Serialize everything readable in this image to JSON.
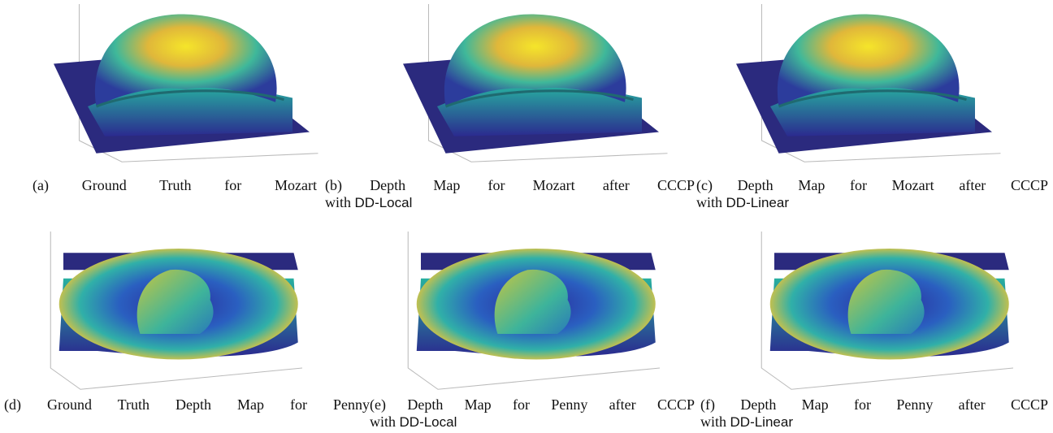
{
  "figures": [
    {
      "label": "(a)",
      "caption": "Ground Truth for Mozart"
    },
    {
      "label": "(b)",
      "caption": "Depth Map for Mozart after CCCP",
      "caption_line2": "with",
      "method": "DD-Local"
    },
    {
      "label": "(c)",
      "caption": "Depth Map for Mozart after CCCP",
      "caption_line2": "with",
      "method": "DD-Linear"
    },
    {
      "label": "(d)",
      "caption": "Ground Truth Depth Map for Penny"
    },
    {
      "label": "(e)",
      "caption": "Depth Map for Penny after CCCP",
      "caption_line2": "with",
      "method": "DD-Local"
    },
    {
      "label": "(f)",
      "caption": "Depth Map for Penny after CCCP",
      "caption_line2": "with",
      "method": "DD-Linear"
    }
  ]
}
